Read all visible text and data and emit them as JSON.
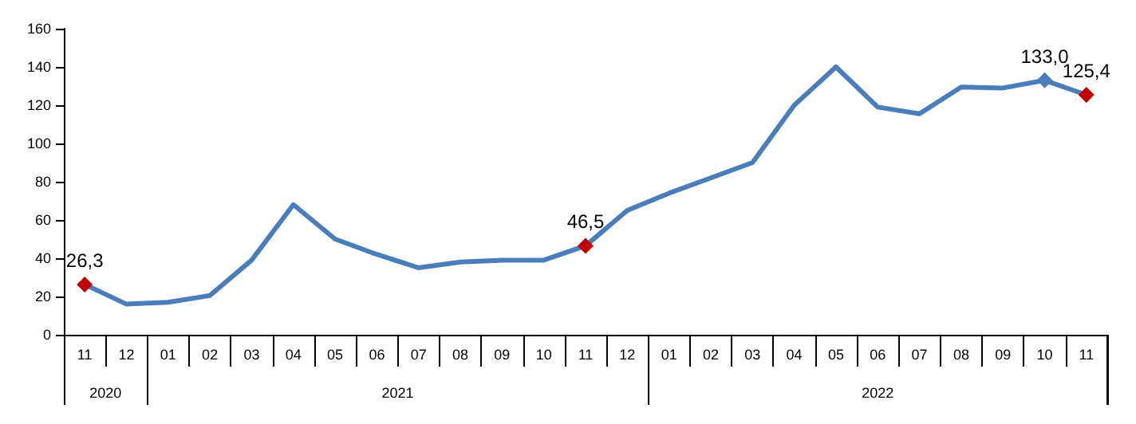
{
  "chart_data": {
    "type": "line",
    "categories": [
      "11",
      "12",
      "01",
      "02",
      "03",
      "04",
      "05",
      "06",
      "07",
      "08",
      "09",
      "10",
      "11",
      "12",
      "01",
      "02",
      "03",
      "04",
      "05",
      "06",
      "07",
      "08",
      "09",
      "10",
      "11"
    ],
    "annotations": [
      "2020",
      "2021",
      "2022"
    ],
    "series": [
      {
        "color": "#4a7ebb",
        "values": [
          26.3,
          16,
          17,
          20.5,
          39,
          68,
          50,
          42,
          35,
          38,
          39,
          39,
          46.5,
          65,
          74,
          82,
          90,
          120,
          140,
          119,
          115.5,
          129.5,
          129,
          133.0,
          125.4
        ],
        "value_labels": [
          "26,3",
          null,
          null,
          null,
          null,
          null,
          null,
          null,
          null,
          null,
          null,
          null,
          "46,5",
          null,
          null,
          null,
          null,
          null,
          null,
          null,
          null,
          null,
          null,
          "133,0",
          "125,4"
        ],
        "colors": [
          "#c00000",
          null,
          null,
          null,
          null,
          null,
          null,
          null,
          null,
          null,
          null,
          null,
          "#c00000",
          null,
          null,
          null,
          null,
          null,
          null,
          null,
          null,
          null,
          null,
          "#4a7ebb",
          "#c00000"
        ]
      }
    ],
    "ylim": [
      0,
      160
    ],
    "yticks": [
      0,
      20,
      40,
      60,
      80,
      100,
      120,
      140,
      160
    ],
    "grid": false,
    "line_style": "solid"
  }
}
